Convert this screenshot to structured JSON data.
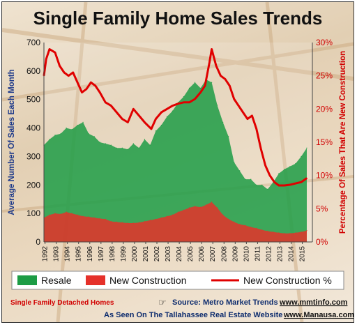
{
  "chart_data": {
    "type": "area",
    "title": "Single Family Home Sales Trends",
    "ylabel": "Average Number Of Sales Each Month",
    "y2label": "Percentage Of Sales That Are New Construction",
    "ylim": [
      0,
      700
    ],
    "y2lim": [
      0,
      30
    ],
    "yticks": [
      "0",
      "100",
      "200",
      "300",
      "400",
      "500",
      "600",
      "700"
    ],
    "y2ticks": [
      "0%",
      "5%",
      "10%",
      "15%",
      "20%",
      "25%",
      "30%"
    ],
    "categories": [
      "1992",
      "1993",
      "1994",
      "1995",
      "1996",
      "1997",
      "1998",
      "1999",
      "2000",
      "2001",
      "2002",
      "2003",
      "2004",
      "2005",
      "2006",
      "2007",
      "2008",
      "2009",
      "2010",
      "2011",
      "2012",
      "2013",
      "2014",
      "2015"
    ],
    "series": [
      {
        "name": "Resale",
        "color": "#1d9c45",
        "x": [
          1992.0,
          1992.5,
          1993.0,
          1993.5,
          1994.0,
          1994.5,
          1995.0,
          1995.5,
          1996.0,
          1996.5,
          1997.0,
          1997.5,
          1998.0,
          1998.5,
          1999.0,
          1999.5,
          2000.0,
          2000.5,
          2001.0,
          2001.5,
          2002.0,
          2002.5,
          2003.0,
          2003.5,
          2004.0,
          2004.5,
          2005.0,
          2005.5,
          2006.0,
          2006.5,
          2007.0,
          2007.5,
          2008.0,
          2008.5,
          2009.0,
          2009.5,
          2010.0,
          2010.5,
          2011.0,
          2011.5,
          2012.0,
          2012.5,
          2013.0,
          2013.5,
          2014.0,
          2014.5,
          2015.0,
          2015.5
        ],
        "values": [
          340,
          360,
          375,
          380,
          400,
          395,
          410,
          420,
          380,
          370,
          350,
          345,
          340,
          330,
          330,
          325,
          345,
          330,
          360,
          340,
          390,
          410,
          440,
          460,
          490,
          510,
          540,
          560,
          540,
          570,
          560,
          480,
          420,
          370,
          280,
          250,
          220,
          220,
          200,
          200,
          185,
          210,
          240,
          255,
          265,
          275,
          300,
          330
        ]
      },
      {
        "name": "New Construction",
        "color": "#e5312a",
        "x": [
          1992.0,
          1992.5,
          1993.0,
          1993.5,
          1994.0,
          1994.5,
          1995.0,
          1995.5,
          1996.0,
          1996.5,
          1997.0,
          1997.5,
          1998.0,
          1998.5,
          1999.0,
          1999.5,
          2000.0,
          2000.5,
          2001.0,
          2001.5,
          2002.0,
          2002.5,
          2003.0,
          2003.5,
          2004.0,
          2004.5,
          2005.0,
          2005.5,
          2006.0,
          2006.5,
          2007.0,
          2007.5,
          2008.0,
          2008.5,
          2009.0,
          2009.5,
          2010.0,
          2010.5,
          2011.0,
          2011.5,
          2012.0,
          2012.5,
          2013.0,
          2013.5,
          2014.0,
          2014.5,
          2015.0,
          2015.5
        ],
        "values": [
          85,
          95,
          100,
          98,
          105,
          100,
          95,
          90,
          88,
          85,
          82,
          80,
          72,
          70,
          68,
          66,
          66,
          68,
          72,
          76,
          80,
          85,
          90,
          95,
          105,
          112,
          120,
          125,
          122,
          130,
          140,
          120,
          95,
          80,
          70,
          62,
          58,
          52,
          48,
          42,
          38,
          35,
          32,
          30,
          30,
          32,
          35,
          40
        ]
      },
      {
        "name": "New Construction %",
        "color": "#e00000",
        "axis": "right",
        "x": [
          1992.0,
          1992.2,
          1992.5,
          1993.0,
          1993.4,
          1993.8,
          1994.2,
          1994.6,
          1995.0,
          1995.4,
          1995.8,
          1996.2,
          1996.6,
          1997.0,
          1997.5,
          1998.0,
          1998.5,
          1999.0,
          1999.5,
          2000.0,
          2000.5,
          2001.0,
          2001.3,
          2001.6,
          2002.0,
          2002.5,
          2003.0,
          2003.5,
          2004.0,
          2004.5,
          2005.0,
          2005.5,
          2006.0,
          2006.4,
          2006.8,
          2007.0,
          2007.4,
          2007.8,
          2008.2,
          2008.6,
          2009.0,
          2009.4,
          2009.8,
          2010.2,
          2010.6,
          2011.0,
          2011.4,
          2011.8,
          2012.2,
          2012.6,
          2013.0,
          2013.5,
          2014.0,
          2014.5,
          2015.0,
          2015.5
        ],
        "values": [
          25.0,
          27.5,
          29.0,
          28.5,
          26.5,
          25.5,
          25.0,
          25.5,
          24.0,
          22.5,
          23.0,
          24.0,
          23.5,
          22.5,
          21.0,
          20.5,
          19.5,
          18.5,
          18.0,
          20.0,
          19.0,
          18.0,
          17.5,
          17.0,
          18.5,
          19.5,
          20.0,
          20.5,
          20.8,
          21.0,
          21.0,
          21.5,
          22.5,
          23.5,
          27.0,
          29.0,
          26.5,
          25.0,
          24.5,
          23.5,
          21.5,
          20.5,
          19.5,
          18.5,
          19.0,
          17.0,
          14.0,
          11.5,
          10.0,
          9.0,
          8.5,
          8.5,
          8.6,
          8.8,
          9.0,
          9.6
        ]
      }
    ],
    "legend": [
      "Resale",
      "New Construction",
      "New Construction %"
    ],
    "legend_position": "bottom",
    "grid": false
  },
  "footer": {
    "left": "Single Family Detached Homes",
    "source_label": "Source:  Metro Market Trends",
    "source_url": "www.mmtinfo.com",
    "seen_on": "As Seen On The Tallahassee Real Estate Website",
    "site_url": "www.Manausa.com"
  }
}
